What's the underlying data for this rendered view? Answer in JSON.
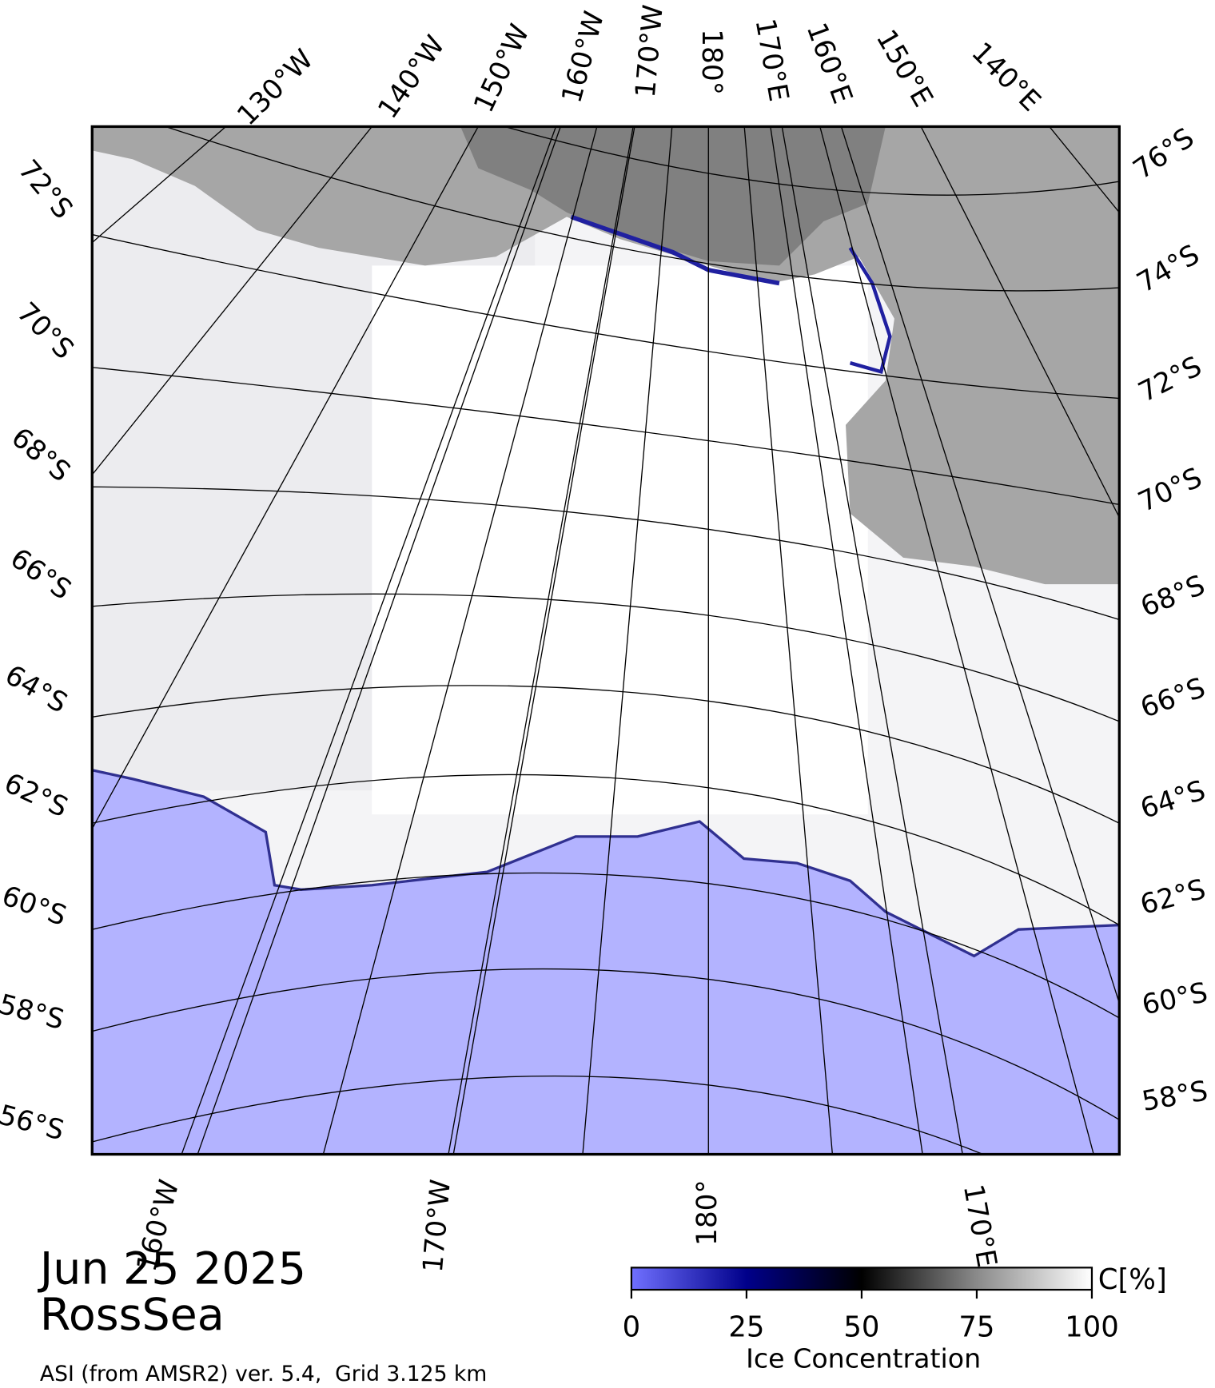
{
  "header": {
    "date": "Jun 25 2025",
    "region": "RossSea",
    "source": "ASI (from AMSR2) ver. 5.4,  Grid 3.125 km"
  },
  "map": {
    "top_labels": [
      "130°W",
      "140°W",
      "150°W",
      "160°W",
      "170°W",
      "180°",
      "170°E",
      "160°E",
      "150°E",
      "140°E"
    ],
    "left_labels": [
      "72°S",
      "70°S",
      "68°S",
      "66°S",
      "64°S",
      "62°S",
      "60°S",
      "58°S",
      "56°S"
    ],
    "right_labels": [
      "76°S",
      "74°S",
      "72°S",
      "70°S",
      "68°S",
      "66°S",
      "64°S",
      "62°S",
      "60°S",
      "58°S"
    ],
    "bottom_labels": [
      "160°W",
      "170°W",
      "180°",
      "170°E"
    ]
  },
  "colorbar": {
    "title": "Ice Concentration",
    "unit": "C[%]",
    "lim": [
      0,
      100
    ],
    "ticks": [
      0,
      25,
      50,
      75,
      100
    ]
  }
}
